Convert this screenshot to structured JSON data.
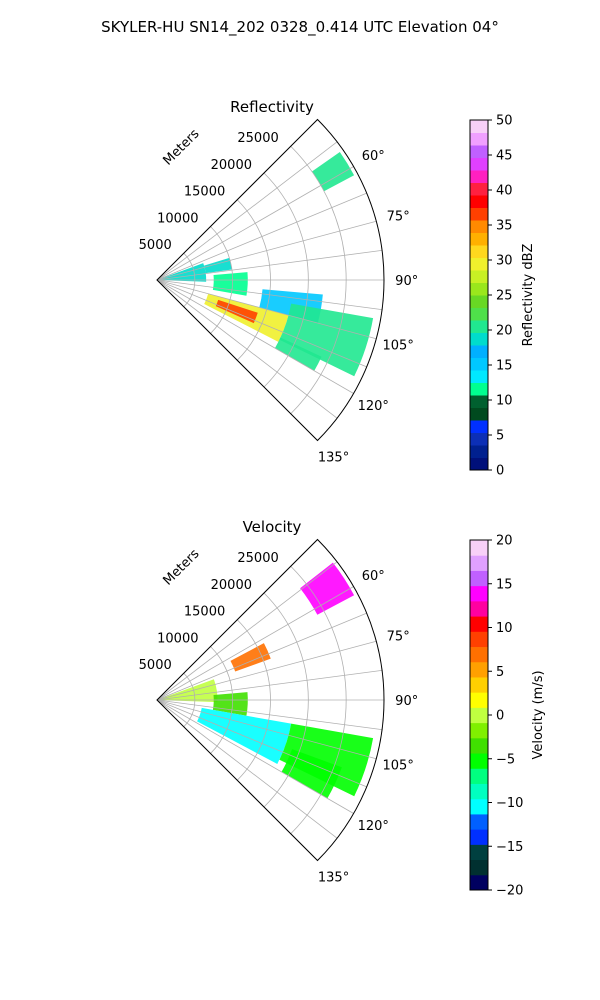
{
  "figure_title": "SKYLER-HU  SN14_202  0328_0.414 UTC Elevation 04°",
  "chart_data": [
    {
      "type": "polar_sector",
      "title": "Reflectivity",
      "radial_label": "Meters",
      "theta_range_deg": [
        45,
        135
      ],
      "r_max": 30000,
      "r_ticks": [
        5000,
        10000,
        15000,
        20000,
        25000
      ],
      "theta_ticks_deg": [
        60,
        75,
        90,
        105,
        120,
        135
      ],
      "theta_tick_labels": [
        "60°",
        "75°",
        "90°",
        "105°",
        "120°",
        "135°"
      ],
      "r_tick_labels": [
        "5000",
        "10000",
        "15000",
        "20000",
        "25000"
      ],
      "colorbar": {
        "label": "Reflectivity dBZ",
        "min": 0,
        "max": 50,
        "ticks": [
          0,
          5,
          10,
          15,
          20,
          25,
          30,
          35,
          40,
          45,
          50
        ],
        "tick_labels": [
          "0",
          "5",
          "10",
          "15",
          "20",
          "25",
          "30",
          "35",
          "40",
          "45",
          "50"
        ]
      },
      "echoes": [
        {
          "theta": [
            55,
            62
          ],
          "r": [
            25000,
            29500
          ],
          "value": 20
        },
        {
          "theta": [
            73,
            82
          ],
          "r": [
            6500,
            10000
          ],
          "value": 19
        },
        {
          "theta": [
            70,
            92
          ],
          "r": [
            0,
            6500
          ],
          "value": 18
        },
        {
          "theta": [
            85,
            100
          ],
          "r": [
            7500,
            12000
          ],
          "value": 12
        },
        {
          "theta": [
            95,
            105
          ],
          "r": [
            14000,
            22000
          ],
          "value": 16
        },
        {
          "theta": [
            105,
            117
          ],
          "r": [
            7000,
            18000
          ],
          "value": 30
        },
        {
          "theta": [
            108,
            114
          ],
          "r": [
            8500,
            14000
          ],
          "value": 36
        },
        {
          "theta": [
            100,
            116
          ],
          "r": [
            18000,
            29000
          ],
          "value": 21
        },
        {
          "theta": [
            115,
            120
          ],
          "r": [
            18000,
            24000
          ],
          "value": 20
        }
      ]
    },
    {
      "type": "polar_sector",
      "title": "Velocity",
      "radial_label": "Meters",
      "theta_range_deg": [
        45,
        135
      ],
      "r_max": 30000,
      "r_ticks": [
        5000,
        10000,
        15000,
        20000,
        25000
      ],
      "theta_ticks_deg": [
        60,
        75,
        90,
        105,
        120,
        135
      ],
      "theta_tick_labels": [
        "60°",
        "75°",
        "90°",
        "105°",
        "120°",
        "135°"
      ],
      "r_tick_labels": [
        "5000",
        "10000",
        "15000",
        "20000",
        "25000"
      ],
      "colorbar": {
        "label": "Velocity (m/s)",
        "min": -20,
        "max": 20,
        "ticks": [
          -20,
          -15,
          -10,
          -5,
          0,
          5,
          10,
          15,
          20
        ],
        "tick_labels": [
          "−20",
          "−15",
          "−10",
          "−5",
          "0",
          "5",
          "10",
          "15",
          "20"
        ]
      },
      "echoes": [
        {
          "theta": [
            52,
            62
          ],
          "r": [
            24000,
            29500
          ],
          "value": 14
        },
        {
          "theta": [
            62,
            70
          ],
          "r": [
            11000,
            16000
          ],
          "value": 7
        },
        {
          "theta": [
            70,
            92
          ],
          "r": [
            0,
            8000
          ],
          "value": 0
        },
        {
          "theta": [
            85,
            100
          ],
          "r": [
            7500,
            12000
          ],
          "value": -3
        },
        {
          "theta": [
            100,
            118
          ],
          "r": [
            6000,
            18000
          ],
          "value": -10
        },
        {
          "theta": [
            100,
            116
          ],
          "r": [
            18000,
            29000
          ],
          "value": -5
        },
        {
          "theta": [
            110,
            120
          ],
          "r": [
            19000,
            26000
          ],
          "value": -6
        }
      ]
    }
  ],
  "colormaps": {
    "reflectivity": [
      "#00107a",
      "#00208f",
      "#0c2fb6",
      "#0030ff",
      "#004a1f",
      "#00602f",
      "#00ff90",
      "#00e8ff",
      "#00c8ff",
      "#00b0ff",
      "#00dccc",
      "#20e890",
      "#4fe04a",
      "#68d824",
      "#9ae71c",
      "#c8f024",
      "#f0f02c",
      "#ffd81e",
      "#ffb000",
      "#ff8a00",
      "#ff4000",
      "#ff0000",
      "#ff2040",
      "#ff20c0",
      "#e040ff",
      "#c060ff",
      "#f0a0ff",
      "#f8d0f8"
    ],
    "velocity": [
      "#000060",
      "#003030",
      "#004040",
      "#0030ff",
      "#0060ff",
      "#00ffff",
      "#00ffc0",
      "#00ff80",
      "#00ff00",
      "#40e000",
      "#80f000",
      "#c0ff40",
      "#ffff00",
      "#ffd000",
      "#ffa000",
      "#ff7000",
      "#ff4000",
      "#ff0000",
      "#ff00a0",
      "#ff00ff",
      "#c060ff",
      "#e0a0ff",
      "#f8d0f8"
    ]
  }
}
